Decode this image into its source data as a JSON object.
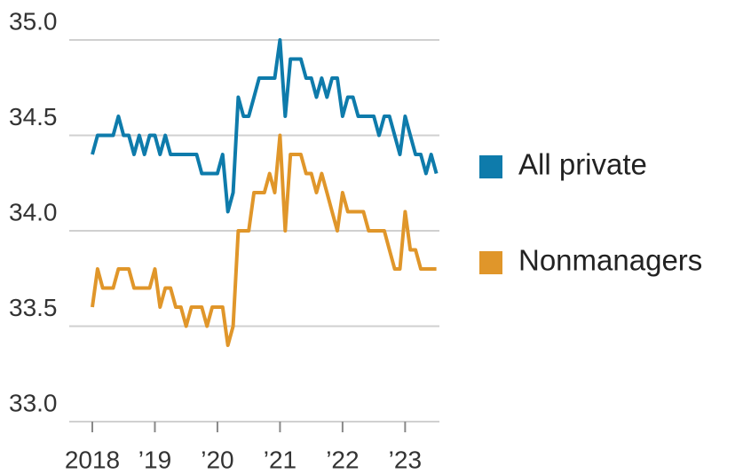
{
  "chart_data": {
    "type": "line",
    "categories": [
      "2018",
      null,
      null,
      null,
      null,
      null,
      null,
      null,
      null,
      null,
      null,
      null,
      "’19",
      null,
      null,
      null,
      null,
      null,
      null,
      null,
      null,
      null,
      null,
      null,
      "’20",
      null,
      null,
      null,
      null,
      null,
      null,
      null,
      null,
      null,
      null,
      null,
      "’21",
      null,
      null,
      null,
      null,
      null,
      null,
      null,
      null,
      null,
      null,
      null,
      "’22",
      null,
      null,
      null,
      null,
      null,
      null,
      null,
      null,
      null,
      null,
      null,
      "’23",
      null,
      null,
      null,
      null,
      null,
      null
    ],
    "series": [
      {
        "name": "All private",
        "color": "#0e7bab",
        "values": [
          34.4,
          34.5,
          34.5,
          34.5,
          34.5,
          34.6,
          34.5,
          34.5,
          34.4,
          34.5,
          34.4,
          34.5,
          34.5,
          34.4,
          34.5,
          34.4,
          34.4,
          34.4,
          34.4,
          34.4,
          34.4,
          34.3,
          34.3,
          34.3,
          34.3,
          34.4,
          34.1,
          34.2,
          34.7,
          34.6,
          34.6,
          34.7,
          34.8,
          34.8,
          34.8,
          34.8,
          35.0,
          34.6,
          34.9,
          34.9,
          34.9,
          34.8,
          34.8,
          34.7,
          34.8,
          34.7,
          34.8,
          34.8,
          34.6,
          34.7,
          34.7,
          34.6,
          34.6,
          34.6,
          34.6,
          34.5,
          34.6,
          34.6,
          34.5,
          34.4,
          34.6,
          34.5,
          34.4,
          34.4,
          34.3,
          34.4,
          34.3
        ]
      },
      {
        "name": "Nonmanagers",
        "color": "#e0962a",
        "values": [
          33.6,
          33.8,
          33.7,
          33.7,
          33.7,
          33.8,
          33.8,
          33.8,
          33.7,
          33.7,
          33.7,
          33.7,
          33.8,
          33.6,
          33.7,
          33.7,
          33.6,
          33.6,
          33.5,
          33.6,
          33.6,
          33.6,
          33.5,
          33.6,
          33.6,
          33.6,
          33.4,
          33.5,
          34.0,
          34.0,
          34.0,
          34.2,
          34.2,
          34.2,
          34.3,
          34.2,
          34.5,
          34.0,
          34.4,
          34.4,
          34.4,
          34.3,
          34.3,
          34.2,
          34.3,
          34.2,
          34.1,
          34.0,
          34.2,
          34.1,
          34.1,
          34.1,
          34.1,
          34.0,
          34.0,
          34.0,
          34.0,
          33.9,
          33.8,
          33.8,
          34.1,
          33.9,
          33.9,
          33.8,
          33.8,
          33.8,
          33.8
        ]
      }
    ],
    "ylim": [
      33.0,
      35.0
    ],
    "yticks": [
      {
        "value": 33,
        "label": "33.0"
      },
      33.5,
      {
        "value": 34,
        "label": "34.0"
      },
      34.5,
      {
        "value": 35,
        "label": "35.0"
      }
    ],
    "grid": true
  }
}
